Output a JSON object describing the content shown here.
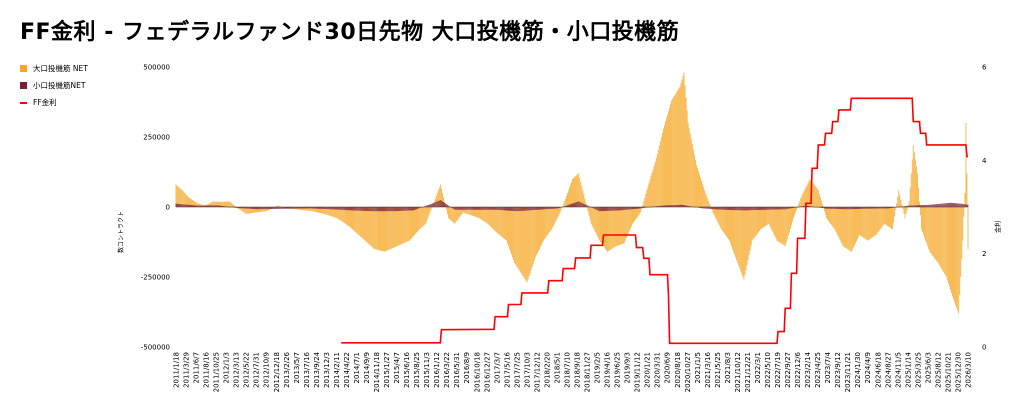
{
  "title": "FF金利 - フェデラルファンド30日先物 大口投機筋・小口投機筋",
  "chart_data": {
    "type": "bar",
    "title": "FF金利 - フェデラルファンド30日先物 大口投機筋・小口投機筋",
    "ylabel": "数コントラクト",
    "y2label": "金利",
    "ylim": [
      -500000,
      500000
    ],
    "y2lim": [
      0,
      6
    ],
    "yticks": [
      500000,
      250000,
      0,
      -250000,
      -500000
    ],
    "ytick_labels": [
      "500000",
      "250000",
      "0",
      "-250000",
      "-500000"
    ],
    "y2ticks": [
      6,
      4,
      2,
      0
    ],
    "grid": false,
    "legend_position": "left",
    "x_start": "2011/1/18",
    "x_end": "2025/9/30",
    "xtick_labels": [
      "2011/1/18",
      "2011/3/29",
      "2011/6/7",
      "2011/8/16",
      "2011/10/25",
      "2012/1/3",
      "2012/3/13",
      "2012/5/22",
      "2012/7/31",
      "2012/10/9",
      "2012/12/18",
      "2013/2/26",
      "2013/5/7",
      "2013/7/16",
      "2013/9/24",
      "2013/12/3",
      "2014/2/11",
      "2014/4/22",
      "2014/7/1",
      "2014/9/9",
      "2014/11/18",
      "2015/1/27",
      "2015/4/7",
      "2015/6/16",
      "2015/8/25",
      "2015/11/3",
      "2016/1/12",
      "2016/3/22",
      "2016/5/31",
      "2016/8/9",
      "2016/10/18",
      "2016/12/27",
      "2017/3/7",
      "2017/5/16",
      "2017/7/25",
      "2017/10/3",
      "2017/12/12",
      "2018/2/20",
      "2018/5/1",
      "2018/7/10",
      "2018/9/18",
      "2018/11/27",
      "2019/2/5",
      "2019/4/16",
      "2019/6/25",
      "2019/9/3",
      "2019/11/12",
      "2020/1/21",
      "2020/3/31",
      "2020/6/9",
      "2020/8/18",
      "2020/10/27",
      "2021/1/5",
      "2021/3/16",
      "2021/5/25",
      "2021/8/3",
      "2021/10/12",
      "2021/12/21",
      "2022/3/1",
      "2022/5/10",
      "2022/7/19",
      "2022/9/27",
      "2022/12/6",
      "2023/2/14",
      "2023/4/25",
      "2023/7/4",
      "2023/9/12",
      "2023/11/21",
      "2024/1/30",
      "2024/4/9",
      "2024/6/18",
      "2024/8/27",
      "2024/11/5",
      "2025/1/14",
      "2025/3/25",
      "2025/6/3",
      "2025/8/12",
      "2025/10/21",
      "2025/12/30",
      "2026/3/10"
    ],
    "series": [
      {
        "name": "大口投機筋 NET",
        "type": "bar",
        "axis": "left",
        "color": "#f5a623",
        "points": [
          [
            "2011/1/18",
            80000
          ],
          [
            "2011/3/1",
            60000
          ],
          [
            "2011/4/12",
            35000
          ],
          [
            "2011/6/7",
            15000
          ],
          [
            "2011/8/2",
            5000
          ],
          [
            "2011/9/27",
            20000
          ],
          [
            "2011/11/22",
            18000
          ],
          [
            "2012/1/17",
            20000
          ],
          [
            "2012/3/13",
            -5000
          ],
          [
            "2012/5/8",
            -25000
          ],
          [
            "2012/7/3",
            -20000
          ],
          [
            "2012/9/25",
            -15000
          ],
          [
            "2012/12/4",
            5000
          ],
          [
            "2013/2/12",
            -5000
          ],
          [
            "2013/5/7",
            -10000
          ],
          [
            "2013/7/30",
            -15000
          ],
          [
            "2013/10/22",
            -25000
          ],
          [
            "2014/1/14",
            -40000
          ],
          [
            "2014/4/8",
            -70000
          ],
          [
            "2014/7/1",
            -110000
          ],
          [
            "2014/9/23",
            -150000
          ],
          [
            "2014/12/2",
            -160000
          ],
          [
            "2015/2/24",
            -140000
          ],
          [
            "2015/5/19",
            -120000
          ],
          [
            "2015/7/28",
            -80000
          ],
          [
            "2015/9/8",
            -60000
          ],
          [
            "2015/10/20",
            0
          ],
          [
            "2015/11/17",
            40000
          ],
          [
            "2015/12/15",
            80000
          ],
          [
            "2016/2/9",
            -40000
          ],
          [
            "2016/3/22",
            -60000
          ],
          [
            "2016/5/17",
            -20000
          ],
          [
            "2016/7/12",
            -30000
          ],
          [
            "2016/9/6",
            -40000
          ],
          [
            "2016/11/1",
            -60000
          ],
          [
            "2016/12/27",
            -90000
          ],
          [
            "2017/3/7",
            -120000
          ],
          [
            "2017/5/2",
            -200000
          ],
          [
            "2017/7/25",
            -270000
          ],
          [
            "2017/9/19",
            -180000
          ],
          [
            "2017/11/14",
            -120000
          ],
          [
            "2018/1/9",
            -80000
          ],
          [
            "2018/3/6",
            -20000
          ],
          [
            "2018/4/17",
            40000
          ],
          [
            "2018/5/29",
            100000
          ],
          [
            "2018/7/10",
            120000
          ],
          [
            "2018/8/21",
            30000
          ],
          [
            "2018/10/2",
            -60000
          ],
          [
            "2018/11/27",
            -120000
          ],
          [
            "2019/1/22",
            -160000
          ],
          [
            "2019/3/19",
            -140000
          ],
          [
            "2019/5/14",
            -130000
          ],
          [
            "2019/7/9",
            -60000
          ],
          [
            "2019/9/3",
            -20000
          ],
          [
            "2019/10/15",
            60000
          ],
          [
            "2019/12/10",
            160000
          ],
          [
            "2020/2/4",
            280000
          ],
          [
            "2020/3/31",
            380000
          ],
          [
            "2020/5/26",
            430000
          ],
          [
            "2020/6/23",
            480000
          ],
          [
            "2020/7/21",
            300000
          ],
          [
            "2020/9/15",
            150000
          ],
          [
            "2020/11/10",
            60000
          ],
          [
            "2021/1/5",
            -20000
          ],
          [
            "2021/3/2",
            -80000
          ],
          [
            "2021/4/27",
            -120000
          ],
          [
            "2021/6/22",
            -200000
          ],
          [
            "2021/8/3",
            -260000
          ],
          [
            "2021/9/28",
            -120000
          ],
          [
            "2021/11/23",
            -80000
          ],
          [
            "2022/1/18",
            -60000
          ],
          [
            "2022/3/15",
            -120000
          ],
          [
            "2022/5/10",
            -140000
          ],
          [
            "2022/7/5",
            -40000
          ],
          [
            "2022/8/30",
            40000
          ],
          [
            "2022/10/25",
            100000
          ],
          [
            "2022/12/20",
            60000
          ],
          [
            "2023/2/14",
            -40000
          ],
          [
            "2023/4/11",
            -80000
          ],
          [
            "2023/6/6",
            -140000
          ],
          [
            "2023/8/1",
            -160000
          ],
          [
            "2023/9/26",
            -100000
          ],
          [
            "2023/11/21",
            -120000
          ],
          [
            "2024/1/16",
            -100000
          ],
          [
            "2024/3/12",
            -60000
          ],
          [
            "2024/5/7",
            -80000
          ],
          [
            "2024/6/18",
            60000
          ],
          [
            "2024/7/30",
            -40000
          ],
          [
            "2024/8/27",
            20000
          ],
          [
            "2024/9/24",
            220000
          ],
          [
            "2024/10/22",
            120000
          ],
          [
            "2024/11/19",
            -80000
          ],
          [
            "2025/1/14",
            -160000
          ],
          [
            "2025/3/11",
            -200000
          ],
          [
            "2025/5/6",
            -250000
          ],
          [
            "2025/6/17",
            -320000
          ],
          [
            "2025/7/29",
            -380000
          ],
          [
            "2025/8/26",
            -120000
          ],
          [
            "2025/9/9",
            50000
          ],
          [
            "2025/9/16",
            300000
          ],
          [
            "2025/9/23",
            120000
          ],
          [
            "2025/9/30",
            -150000
          ]
        ]
      },
      {
        "name": "小口投機筋NET",
        "type": "bar",
        "axis": "left",
        "color": "#7b1f35",
        "points": [
          [
            "2011/1/18",
            12000
          ],
          [
            "2011/6/7",
            5000
          ],
          [
            "2011/10/25",
            6000
          ],
          [
            "2012/3/13",
            -4000
          ],
          [
            "2012/7/31",
            -8000
          ],
          [
            "2013/2/26",
            -6000
          ],
          [
            "2013/7/16",
            -5000
          ],
          [
            "2013/12/3",
            -8000
          ],
          [
            "2014/4/22",
            -12000
          ],
          [
            "2014/9/9",
            -15000
          ],
          [
            "2015/1/27",
            -15000
          ],
          [
            "2015/6/16",
            -12000
          ],
          [
            "2015/11/3",
            15000
          ],
          [
            "2015/12/15",
            25000
          ],
          [
            "2016/3/22",
            -10000
          ],
          [
            "2016/8/9",
            -10000
          ],
          [
            "2016/12/27",
            -10000
          ],
          [
            "2017/5/16",
            -15000
          ],
          [
            "2017/10/3",
            -10000
          ],
          [
            "2018/2/20",
            -5000
          ],
          [
            "2018/7/10",
            20000
          ],
          [
            "2018/11/27",
            -15000
          ],
          [
            "2019/4/16",
            -12000
          ],
          [
            "2019/9/3",
            -5000
          ],
          [
            "2020/1/21",
            5000
          ],
          [
            "2020/6/9",
            8000
          ],
          [
            "2020/10/27",
            -5000
          ],
          [
            "2021/3/16",
            -10000
          ],
          [
            "2021/8/3",
            -12000
          ],
          [
            "2021/12/21",
            -10000
          ],
          [
            "2022/5/10",
            -8000
          ],
          [
            "2022/9/27",
            5000
          ],
          [
            "2023/2/14",
            -6000
          ],
          [
            "2023/7/4",
            -8000
          ],
          [
            "2023/11/21",
            -6000
          ],
          [
            "2024/4/9",
            -5000
          ],
          [
            "2024/8/27",
            5000
          ],
          [
            "2025/1/14",
            8000
          ],
          [
            "2025/6/3",
            15000
          ],
          [
            "2025/8/12",
            12000
          ],
          [
            "2025/9/30",
            8000
          ]
        ]
      },
      {
        "name": "FF金利",
        "type": "line",
        "axis": "right",
        "color": "#ff0000",
        "points": [
          [
            "2014/2/11",
            0.09
          ],
          [
            "2015/12/15",
            0.09
          ],
          [
            "2015/12/22",
            0.37
          ],
          [
            "2016/12/13",
            0.38
          ],
          [
            "2016/12/20",
            0.65
          ],
          [
            "2017/3/14",
            0.65
          ],
          [
            "2017/3/21",
            0.91
          ],
          [
            "2017/6/13",
            0.91
          ],
          [
            "2017/6/20",
            1.16
          ],
          [
            "2017/12/12",
            1.16
          ],
          [
            "2017/12/19",
            1.42
          ],
          [
            "2018/3/20",
            1.42
          ],
          [
            "2018/3/27",
            1.68
          ],
          [
            "2018/6/12",
            1.68
          ],
          [
            "2018/6/19",
            1.91
          ],
          [
            "2018/9/25",
            1.91
          ],
          [
            "2018/10/2",
            2.18
          ],
          [
            "2018/12/18",
            2.18
          ],
          [
            "2018/12/25",
            2.4
          ],
          [
            "2019/7/30",
            2.4
          ],
          [
            "2019/8/6",
            2.13
          ],
          [
            "2019/9/17",
            2.13
          ],
          [
            "2019/9/24",
            1.9
          ],
          [
            "2019/10/29",
            1.9
          ],
          [
            "2019/11/5",
            1.55
          ],
          [
            "2020/3/3",
            1.55
          ],
          [
            "2020/3/10",
            1.1
          ],
          [
            "2020/3/17",
            0.08
          ],
          [
            "2022/3/15",
            0.08
          ],
          [
            "2022/3/22",
            0.33
          ],
          [
            "2022/5/3",
            0.33
          ],
          [
            "2022/5/10",
            0.83
          ],
          [
            "2022/6/14",
            0.83
          ],
          [
            "2022/6/21",
            1.58
          ],
          [
            "2022/7/26",
            1.58
          ],
          [
            "2022/8/2",
            2.33
          ],
          [
            "2022/9/20",
            2.33
          ],
          [
            "2022/9/27",
            3.08
          ],
          [
            "2022/11/1",
            3.08
          ],
          [
            "2022/11/8",
            3.83
          ],
          [
            "2022/12/13",
            3.83
          ],
          [
            "2022/12/20",
            4.33
          ],
          [
            "2023/1/31",
            4.33
          ],
          [
            "2023/2/7",
            4.58
          ],
          [
            "2023/3/21",
            4.58
          ],
          [
            "2023/3/28",
            4.83
          ],
          [
            "2023/5/2",
            4.83
          ],
          [
            "2023/5/9",
            5.08
          ],
          [
            "2023/7/25",
            5.08
          ],
          [
            "2023/8/1",
            5.33
          ],
          [
            "2024/9/17",
            5.33
          ],
          [
            "2024/9/24",
            4.83
          ],
          [
            "2024/11/5",
            4.83
          ],
          [
            "2024/11/12",
            4.58
          ],
          [
            "2024/12/17",
            4.58
          ],
          [
            "2024/12/24",
            4.33
          ],
          [
            "2025/9/16",
            4.33
          ],
          [
            "2025/9/23",
            4.08
          ],
          [
            "2025/9/30",
            4.08
          ]
        ]
      }
    ]
  }
}
